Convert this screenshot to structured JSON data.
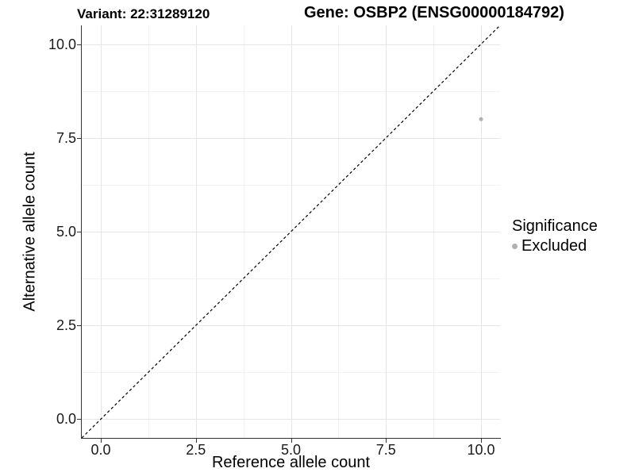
{
  "figure": {
    "title_left": "Variant: 22:31289120",
    "title_right": "Gene: OSBP2 (ENSG00000184792)"
  },
  "chart_data": {
    "type": "scatter",
    "title_left": "Variant: 22:31289120",
    "title_right": "Gene: OSBP2 (ENSG00000184792)",
    "xlabel": "Reference allele count",
    "ylabel": "Alternative allele count",
    "xlim": [
      -0.5,
      10.5
    ],
    "ylim": [
      -0.5,
      10.5
    ],
    "x_ticks": {
      "values": [
        0,
        2.5,
        5,
        7.5,
        10
      ],
      "labels": [
        "0.0",
        "2.5",
        "5.0",
        "7.5",
        "10.0"
      ]
    },
    "y_ticks": {
      "values": [
        0,
        2.5,
        5,
        7.5,
        10
      ],
      "labels": [
        "0.0",
        "2.5",
        "5.0",
        "7.5",
        "10.0"
      ]
    },
    "minor_tick_values": [
      1.25,
      3.75,
      6.25,
      8.75
    ],
    "grid": "major+minor",
    "points": [
      {
        "x": 10,
        "y": 8,
        "series": "Excluded"
      }
    ],
    "identity_line": {
      "slope": 1,
      "intercept": 0,
      "style": "dashed",
      "color": "#000000"
    },
    "legend": {
      "title": "Significance",
      "position": "right",
      "entries": [
        {
          "label": "Excluded",
          "color": "#b0b0b0"
        }
      ]
    },
    "colors": {
      "point": "#b3b3b3",
      "grid_major": "#e6e6e6",
      "grid_minor": "#f2f2f2",
      "axis_line": "#333333",
      "text": "#000000",
      "background": "#ffffff"
    }
  }
}
